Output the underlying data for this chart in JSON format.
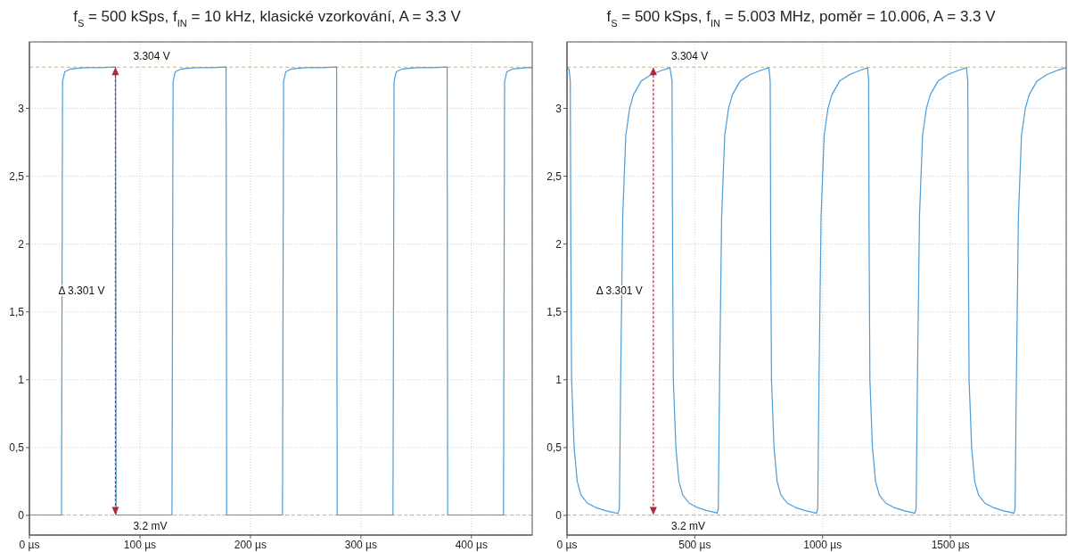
{
  "chart_data": [
    {
      "type": "line",
      "title": "f$_{S}$ = 500 kSps, f$_{IN}$ = 10 kHz, klasické vzorkování, A = 3.3 V",
      "x": [
        0,
        29,
        30,
        32,
        37,
        50,
        65,
        78,
        78.5,
        129,
        130,
        132,
        137,
        150,
        165,
        178,
        178.5,
        229,
        230,
        232,
        237,
        250,
        265,
        278,
        278.5,
        329,
        330,
        332,
        337,
        350,
        365,
        378,
        378.5,
        429,
        430,
        432,
        437,
        450,
        455
      ],
      "series": [
        {
          "color": "#4a9bd6",
          "values": [
            0.003,
            0.003,
            3.2,
            3.27,
            3.29,
            3.3,
            3.3,
            3.305,
            0.003,
            0.003,
            3.2,
            3.27,
            3.29,
            3.3,
            3.3,
            3.305,
            0.003,
            0.003,
            3.2,
            3.27,
            3.29,
            3.3,
            3.3,
            3.305,
            0.003,
            0.003,
            3.2,
            3.27,
            3.29,
            3.3,
            3.3,
            3.305,
            0.003,
            0.003,
            3.2,
            3.27,
            3.29,
            3.3,
            3.3
          ]
        }
      ],
      "xlim": [
        0,
        455
      ],
      "xticks": [
        {
          "value": 0,
          "label": "0 µs"
        },
        {
          "value": 100,
          "label": "100 µs"
        },
        {
          "value": 200,
          "label": "200 µs"
        },
        {
          "value": 300,
          "label": "300 µs"
        },
        {
          "value": 400,
          "label": "400 µs"
        }
      ],
      "ylim": [
        -0.145,
        3.49
      ],
      "yticks": [
        0,
        {
          "value": 0.5,
          "label": "0,5"
        },
        1,
        {
          "value": 1.5,
          "label": "1,5"
        },
        2,
        {
          "value": 2.5,
          "label": "2,5"
        },
        3
      ],
      "grid": true,
      "marker": "none",
      "line_style": "solid",
      "ref_lines": [
        {
          "axis": "y",
          "value": 3.304,
          "label": "3.304 V",
          "color": "#f0b429",
          "line_style": "dashed"
        },
        {
          "axis": "y",
          "value": 0.0032,
          "label": "3.2 mV",
          "color": "#f0b429",
          "line_style": "dashed"
        }
      ],
      "annotations": [
        "Δ 3.301 V"
      ]
    },
    {
      "type": "line",
      "title": "f$_{S}$ = 500 kSps, f$_{IN}$ = 5.003 MHz, poměr = 10.006, A = 3.3 V",
      "x": [
        0,
        8,
        13,
        15,
        18,
        28,
        40,
        55,
        80,
        110,
        150,
        185,
        200,
        205,
        210,
        218,
        230,
        245,
        260,
        290,
        330,
        370,
        403,
        411,
        413,
        416,
        426,
        438,
        453,
        478,
        508,
        548,
        583,
        587,
        592,
        597,
        605,
        617,
        632,
        647,
        677,
        717,
        757,
        790,
        795,
        797,
        800,
        810,
        822,
        837,
        862,
        892,
        932,
        967,
        976,
        981,
        986,
        994,
        1006,
        1021,
        1036,
        1066,
        1106,
        1146,
        1176,
        1180,
        1182,
        1185,
        1195,
        1207,
        1222,
        1247,
        1277,
        1317,
        1352,
        1361,
        1366,
        1371,
        1379,
        1391,
        1406,
        1421,
        1451,
        1491,
        1531,
        1563,
        1568,
        1570,
        1573,
        1583,
        1595,
        1610,
        1635,
        1665,
        1705,
        1740,
        1748,
        1753,
        1758,
        1766,
        1778,
        1793,
        1808,
        1838,
        1878,
        1918,
        1953
      ],
      "series": [
        {
          "color": "#4a9bd6",
          "values": [
            3.3,
            3.29,
            3.2,
            2.0,
            1.0,
            0.5,
            0.25,
            0.15,
            0.09,
            0.06,
            0.035,
            0.02,
            0.015,
            0.05,
            1.0,
            2.2,
            2.8,
            3.0,
            3.1,
            3.2,
            3.25,
            3.28,
            3.3,
            3.2,
            2.0,
            1.0,
            0.5,
            0.25,
            0.15,
            0.09,
            0.06,
            0.035,
            0.02,
            0.015,
            0.05,
            1.0,
            2.2,
            2.8,
            3.0,
            3.1,
            3.2,
            3.25,
            3.28,
            3.3,
            3.2,
            2.0,
            1.0,
            0.5,
            0.25,
            0.15,
            0.09,
            0.06,
            0.035,
            0.02,
            0.015,
            0.05,
            1.0,
            2.2,
            2.8,
            3.0,
            3.1,
            3.2,
            3.25,
            3.28,
            3.3,
            3.2,
            2.0,
            1.0,
            0.5,
            0.25,
            0.15,
            0.09,
            0.06,
            0.035,
            0.02,
            0.015,
            0.05,
            1.0,
            2.2,
            2.8,
            3.0,
            3.1,
            3.2,
            3.25,
            3.28,
            3.3,
            3.2,
            2.0,
            1.0,
            0.5,
            0.25,
            0.15,
            0.09,
            0.06,
            0.035,
            0.02,
            0.015,
            0.05,
            1.0,
            2.2,
            2.8,
            3.0,
            3.1,
            3.2,
            3.25,
            3.28,
            3.3
          ]
        }
      ],
      "xlim": [
        0,
        1953
      ],
      "xticks": [
        {
          "value": 0,
          "label": "0 µs"
        },
        {
          "value": 500,
          "label": "500 µs"
        },
        {
          "value": 1000,
          "label": "1000 µs"
        },
        {
          "value": 1500,
          "label": "1500 µs"
        }
      ],
      "ylim": [
        -0.145,
        3.49
      ],
      "yticks": [
        0,
        {
          "value": 0.5,
          "label": "0,5"
        },
        1,
        {
          "value": 1.5,
          "label": "1,5"
        },
        2,
        {
          "value": 2.5,
          "label": "2,5"
        },
        3
      ],
      "grid": true,
      "marker": "none",
      "line_style": "solid",
      "ref_lines": [
        {
          "axis": "y",
          "value": 3.304,
          "label": "3.304 V",
          "color": "#f0b429",
          "line_style": "dashed"
        },
        {
          "axis": "y",
          "value": 0.0032,
          "label": "3.2 mV",
          "color": "#f0b429",
          "line_style": "dashed"
        }
      ],
      "annotations": [
        "Δ 3.301 V"
      ]
    }
  ]
}
